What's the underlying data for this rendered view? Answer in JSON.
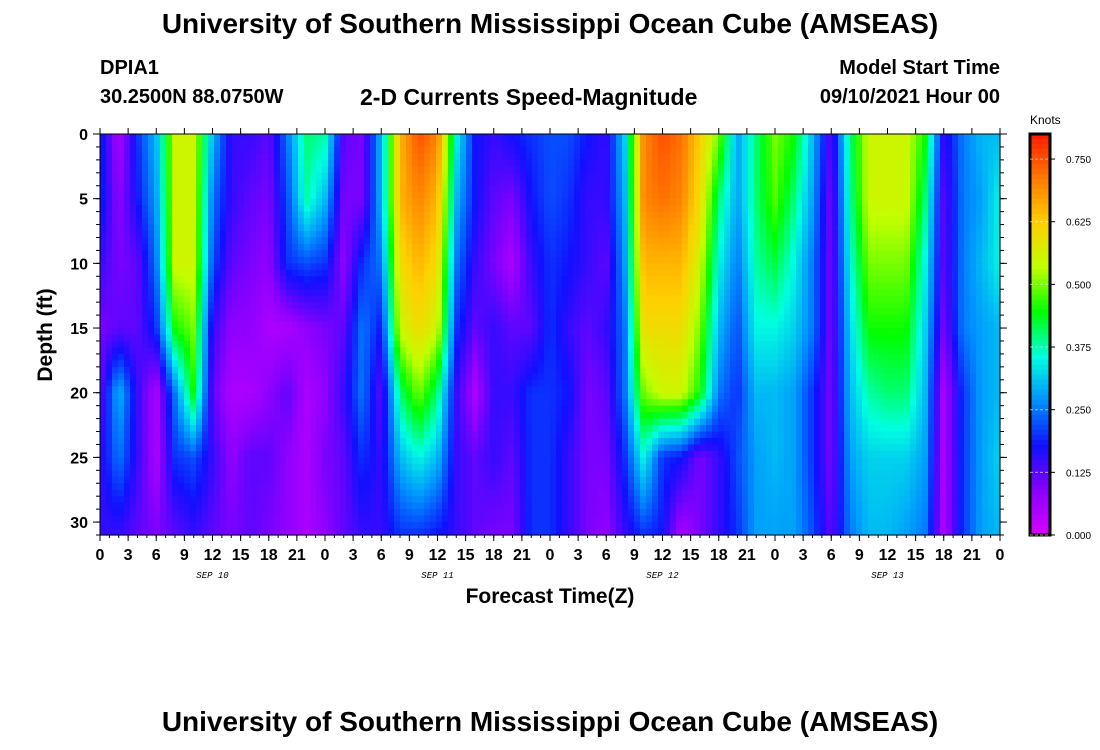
{
  "header": {
    "title": "University of Southern Mississippi Ocean Cube (AMSEAS)",
    "station": "DPIA1",
    "coords": "30.2500N  88.0750W",
    "subtitle": "2-D Currents Speed-Magnitude",
    "model_start_label": "Model Start Time",
    "model_start_value": "09/10/2021 Hour 00"
  },
  "footer": {
    "title": "University of Southern Mississippi Ocean Cube (AMSEAS)"
  },
  "colors": {
    "colormap": [
      "#d800ff",
      "#8800ff",
      "#1010ff",
      "#0090ff",
      "#00ffe0",
      "#00ff00",
      "#c0ff00",
      "#ffd000",
      "#ff7a00",
      "#ff1a00"
    ]
  },
  "chart_data": {
    "type": "heatmap",
    "title": "2-D Currents Speed-Magnitude",
    "xlabel": "Forecast Time(Z)",
    "ylabel": "Depth (ft)",
    "x_hours_range": [
      0,
      96
    ],
    "xticks": [
      "0",
      "3",
      "6",
      "9",
      "12",
      "15",
      "18",
      "21",
      "0",
      "3",
      "6",
      "9",
      "12",
      "15",
      "18",
      "21",
      "0",
      "3",
      "6",
      "9",
      "12",
      "15",
      "18",
      "21",
      "0",
      "3",
      "6",
      "9",
      "12",
      "15",
      "18",
      "21",
      "0"
    ],
    "date_labels": [
      {
        "text": "SEP 10",
        "hour": 12
      },
      {
        "text": "SEP 11",
        "hour": 36
      },
      {
        "text": "SEP 12",
        "hour": 60
      },
      {
        "text": "SEP 13",
        "hour": 84
      }
    ],
    "ylim": [
      0,
      31
    ],
    "yticks": [
      "0",
      "5",
      "10",
      "15",
      "20",
      "25",
      "30"
    ],
    "yticks_values": [
      0,
      5,
      10,
      15,
      20,
      25,
      30
    ],
    "colorbar": {
      "units": "Knots",
      "range": [
        0.0,
        0.8
      ],
      "tick_labels": [
        "0.750",
        "0.625",
        "0.500",
        "0.375",
        "0.250",
        "0.125",
        "0.000"
      ],
      "tick_values": [
        0.75,
        0.625,
        0.5,
        0.375,
        0.25,
        0.125,
        0.0
      ]
    },
    "hours": [
      0,
      2,
      4,
      6,
      8,
      10,
      12,
      14,
      16,
      18,
      20,
      22,
      24,
      26,
      28,
      30,
      32,
      34,
      36,
      38,
      40,
      42,
      44,
      46,
      48,
      50,
      52,
      54,
      56,
      58,
      60,
      62,
      64,
      66,
      68,
      70,
      72,
      74,
      76,
      78,
      80,
      82,
      84,
      86,
      88,
      90,
      92,
      94,
      96
    ],
    "depths_ft": [
      0,
      5,
      10,
      15,
      20,
      25,
      31
    ],
    "speed_knots": [
      [
        0.2,
        0.05,
        0.2,
        0.3,
        0.55,
        0.55,
        0.3,
        0.15,
        0.15,
        0.12,
        0.25,
        0.4,
        0.38,
        0.12,
        0.1,
        0.3,
        0.65,
        0.75,
        0.7,
        0.35,
        0.18,
        0.15,
        0.18,
        0.2,
        0.22,
        0.22,
        0.18,
        0.15,
        0.32,
        0.7,
        0.75,
        0.72,
        0.62,
        0.5,
        0.28,
        0.4,
        0.5,
        0.45,
        0.3,
        0.12,
        0.4,
        0.55,
        0.55,
        0.55,
        0.45,
        0.15,
        0.25,
        0.3,
        0.3
      ],
      [
        0.2,
        0.08,
        0.18,
        0.28,
        0.55,
        0.55,
        0.25,
        0.15,
        0.12,
        0.1,
        0.22,
        0.38,
        0.3,
        0.1,
        0.1,
        0.3,
        0.65,
        0.7,
        0.65,
        0.3,
        0.18,
        0.12,
        0.1,
        0.18,
        0.22,
        0.2,
        0.15,
        0.15,
        0.3,
        0.7,
        0.72,
        0.7,
        0.6,
        0.4,
        0.28,
        0.4,
        0.48,
        0.4,
        0.28,
        0.1,
        0.38,
        0.55,
        0.55,
        0.55,
        0.4,
        0.12,
        0.25,
        0.28,
        0.35
      ],
      [
        0.15,
        0.1,
        0.12,
        0.25,
        0.55,
        0.55,
        0.22,
        0.12,
        0.1,
        0.08,
        0.2,
        0.22,
        0.2,
        0.08,
        0.2,
        0.25,
        0.6,
        0.65,
        0.6,
        0.25,
        0.15,
        0.1,
        0.05,
        0.15,
        0.2,
        0.18,
        0.15,
        0.12,
        0.28,
        0.65,
        0.65,
        0.65,
        0.55,
        0.35,
        0.25,
        0.38,
        0.42,
        0.35,
        0.25,
        0.1,
        0.35,
        0.5,
        0.5,
        0.5,
        0.35,
        0.12,
        0.25,
        0.3,
        0.35
      ],
      [
        0.1,
        0.12,
        0.12,
        0.2,
        0.45,
        0.5,
        0.15,
        0.08,
        0.08,
        0.05,
        0.05,
        0.08,
        0.1,
        0.12,
        0.25,
        0.18,
        0.55,
        0.6,
        0.55,
        0.2,
        0.12,
        0.15,
        0.12,
        0.12,
        0.2,
        0.15,
        0.12,
        0.15,
        0.25,
        0.6,
        0.6,
        0.6,
        0.5,
        0.3,
        0.22,
        0.35,
        0.35,
        0.32,
        0.25,
        0.1,
        0.32,
        0.45,
        0.45,
        0.45,
        0.32,
        0.1,
        0.25,
        0.28,
        0.3
      ],
      [
        0.12,
        0.3,
        0.15,
        0.05,
        0.25,
        0.45,
        0.12,
        0.05,
        0.05,
        0.08,
        0.12,
        0.05,
        0.08,
        0.15,
        0.25,
        0.12,
        0.4,
        0.5,
        0.4,
        0.15,
        0.05,
        0.15,
        0.15,
        0.2,
        0.2,
        0.18,
        0.1,
        0.12,
        0.25,
        0.5,
        0.55,
        0.55,
        0.45,
        0.25,
        0.2,
        0.3,
        0.3,
        0.28,
        0.2,
        0.1,
        0.3,
        0.38,
        0.4,
        0.4,
        0.3,
        0.05,
        0.2,
        0.28,
        0.3
      ],
      [
        0.15,
        0.25,
        0.15,
        0.05,
        0.2,
        0.22,
        0.15,
        0.08,
        0.12,
        0.12,
        0.08,
        0.05,
        0.1,
        0.12,
        0.2,
        0.15,
        0.3,
        0.35,
        0.3,
        0.15,
        0.12,
        0.15,
        0.12,
        0.2,
        0.2,
        0.15,
        0.1,
        0.1,
        0.2,
        0.35,
        0.2,
        0.18,
        0.1,
        0.15,
        0.22,
        0.28,
        0.3,
        0.28,
        0.2,
        0.1,
        0.28,
        0.32,
        0.32,
        0.32,
        0.28,
        0.05,
        0.2,
        0.28,
        0.32
      ],
      [
        0.15,
        0.15,
        0.12,
        0.1,
        0.12,
        0.15,
        0.12,
        0.1,
        0.12,
        0.1,
        0.08,
        0.05,
        0.08,
        0.12,
        0.15,
        0.15,
        0.2,
        0.2,
        0.18,
        0.15,
        0.12,
        0.1,
        0.1,
        0.2,
        0.2,
        0.15,
        0.1,
        0.08,
        0.15,
        0.2,
        0.18,
        0.05,
        0.1,
        0.15,
        0.2,
        0.28,
        0.28,
        0.28,
        0.22,
        0.12,
        0.25,
        0.3,
        0.3,
        0.28,
        0.25,
        0.05,
        0.2,
        0.28,
        0.3
      ]
    ]
  }
}
